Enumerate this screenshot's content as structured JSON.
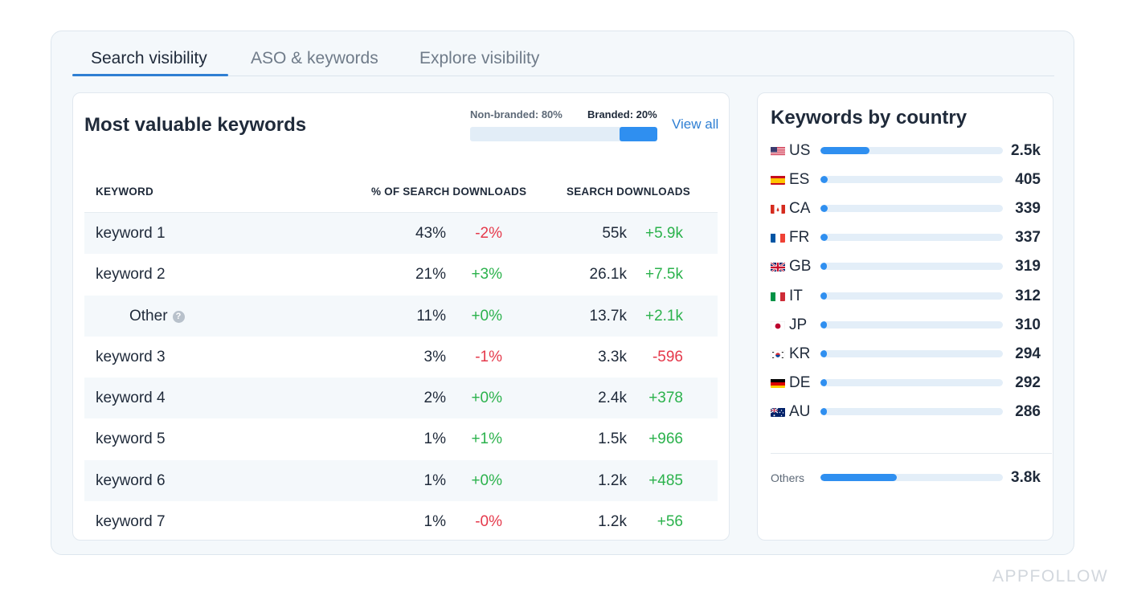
{
  "tabs": [
    {
      "label": "Search visibility",
      "active": true
    },
    {
      "label": "ASO & keywords",
      "active": false
    },
    {
      "label": "Explore visibility",
      "active": false
    }
  ],
  "keywords_card": {
    "title": "Most valuable keywords",
    "non_branded_label": "Non-branded: 80%",
    "branded_label": "Branded: 20%",
    "branded_fraction": 0.2,
    "view_all": "View all",
    "columns": {
      "keyword": "KEYWORD",
      "pct_search": "% OF SEARCH DOWNLOADS",
      "search_downloads": "SEARCH DOWNLOADS"
    },
    "rows": [
      {
        "keyword": "keyword 1",
        "pct": "43%",
        "pct_delta": "-2%",
        "downloads": "55k",
        "downloads_delta": "+5.9k"
      },
      {
        "keyword": "keyword 2",
        "pct": "21%",
        "pct_delta": "+3%",
        "downloads": "26.1k",
        "downloads_delta": "+7.5k"
      },
      {
        "keyword": "Other",
        "pct": "11%",
        "pct_delta": "+0%",
        "downloads": "13.7k",
        "downloads_delta": "+2.1k",
        "help_icon": "question-icon",
        "help_glyph": "?"
      },
      {
        "keyword": "keyword 3",
        "pct": "3%",
        "pct_delta": "-1%",
        "downloads": "3.3k",
        "downloads_delta": "-596"
      },
      {
        "keyword": "keyword 4",
        "pct": "2%",
        "pct_delta": "+0%",
        "downloads": "2.4k",
        "downloads_delta": "+378"
      },
      {
        "keyword": "keyword 5",
        "pct": "1%",
        "pct_delta": "+1%",
        "downloads": "1.5k",
        "downloads_delta": "+966"
      },
      {
        "keyword": "keyword 6",
        "pct": "1%",
        "pct_delta": "+0%",
        "downloads": "1.2k",
        "downloads_delta": "+485"
      },
      {
        "keyword": "keyword 7",
        "pct": "1%",
        "pct_delta": "-0%",
        "downloads": "1.2k",
        "downloads_delta": "+56"
      }
    ]
  },
  "country_card": {
    "title": "Keywords by country",
    "countries": [
      {
        "code": "US",
        "value": "2.5k",
        "fraction": 0.27,
        "flag_icon": "us-flag-icon"
      },
      {
        "code": "ES",
        "value": "405",
        "fraction": 0.04,
        "flag_icon": "es-flag-icon"
      },
      {
        "code": "CA",
        "value": "339",
        "fraction": 0.04,
        "flag_icon": "ca-flag-icon"
      },
      {
        "code": "FR",
        "value": "337",
        "fraction": 0.04,
        "flag_icon": "fr-flag-icon"
      },
      {
        "code": "GB",
        "value": "319",
        "fraction": 0.03,
        "flag_icon": "gb-flag-icon"
      },
      {
        "code": "IT",
        "value": "312",
        "fraction": 0.03,
        "flag_icon": "it-flag-icon"
      },
      {
        "code": "JP",
        "value": "310",
        "fraction": 0.03,
        "flag_icon": "jp-flag-icon"
      },
      {
        "code": "KR",
        "value": "294",
        "fraction": 0.03,
        "flag_icon": "kr-flag-icon"
      },
      {
        "code": "DE",
        "value": "292",
        "fraction": 0.03,
        "flag_icon": "de-flag-icon"
      },
      {
        "code": "AU",
        "value": "286",
        "fraction": 0.03,
        "flag_icon": "au-flag-icon"
      }
    ],
    "others": {
      "label": "Others",
      "value": "3.8k",
      "fraction": 0.42
    }
  },
  "colors": {
    "accent": "#2f8ff0",
    "positive": "#2bb24c",
    "negative": "#e5394b",
    "bar_track": "#e3eef8"
  },
  "watermark": "APPFOLLOW"
}
